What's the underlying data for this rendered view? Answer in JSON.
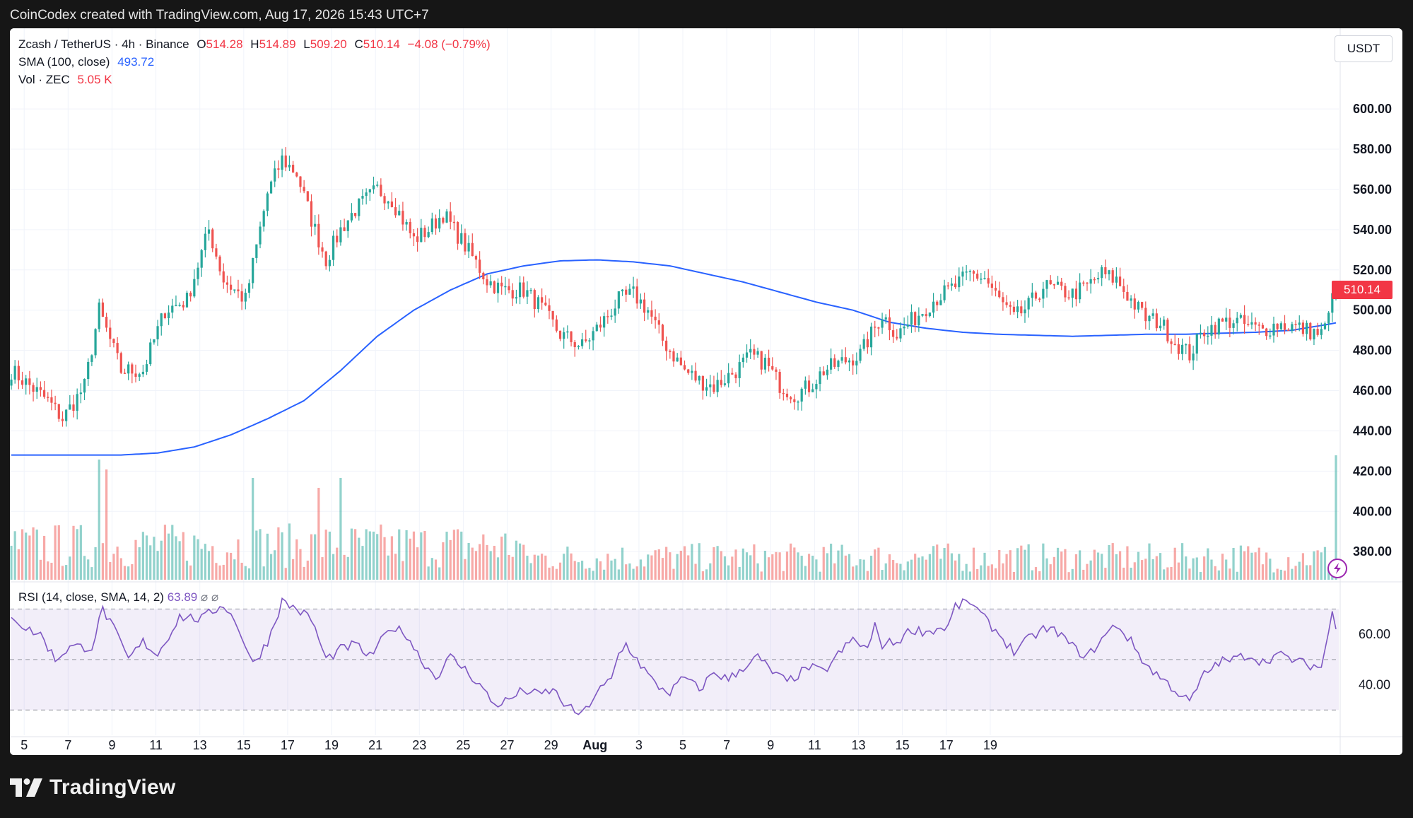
{
  "header": {
    "attribution": "CoinCodex created with TradingView.com, Aug 17, 2026 15:43 UTC+7"
  },
  "footer": {
    "brand": "TradingView",
    "logo_icon": "tradingview-logo-icon"
  },
  "legend": {
    "symbol": "Zcash / TetherUS · 4h · Binance",
    "o_label": "O",
    "o_value": "514.28",
    "h_label": "H",
    "h_value": "514.89",
    "l_label": "L",
    "l_value": "509.20",
    "c_label": "C",
    "c_value": "510.14",
    "change": "−4.08 (−0.79%)",
    "sma_label": "SMA (100, close)",
    "sma_value": "493.72",
    "vol_label": "Vol · ZEC",
    "vol_value": "5.05 K"
  },
  "rsi_legend": {
    "label": "RSI (14, close, SMA, 14, 2)",
    "value": "63.89",
    "eye_icon": "hidden-value-icon"
  },
  "price_axis": {
    "unit": "USDT",
    "last_price": "510.14"
  },
  "colors": {
    "up": "#26a69a",
    "down": "#ef5350",
    "sma": "#2962ff",
    "rsi": "#7e57c2"
  },
  "chart_data": [
    {
      "type": "candlestick",
      "interval": "4h",
      "x_ticks": [
        "5",
        "7",
        "9",
        "11",
        "13",
        "15",
        "17",
        "19",
        "21",
        "23",
        "25",
        "27",
        "29",
        "Aug",
        "3",
        "5",
        "7",
        "9",
        "11",
        "13",
        "15",
        "17",
        "19"
      ],
      "y_ticks": [
        "380.00",
        "400.00",
        "420.00",
        "440.00",
        "460.00",
        "480.00",
        "500.00",
        "520.00",
        "540.00",
        "560.00",
        "580.00",
        "600.00"
      ],
      "ylim": [
        366,
        612
      ],
      "close_waypoints": [
        [
          0,
          470
        ],
        [
          10,
          455
        ],
        [
          14,
          446
        ],
        [
          20,
          462
        ],
        [
          24,
          500
        ],
        [
          30,
          470
        ],
        [
          36,
          470
        ],
        [
          42,
          500
        ],
        [
          48,
          505
        ],
        [
          54,
          540
        ],
        [
          58,
          515
        ],
        [
          64,
          505
        ],
        [
          70,
          558
        ],
        [
          74,
          575
        ],
        [
          78,
          568
        ],
        [
          82,
          545
        ],
        [
          86,
          525
        ],
        [
          90,
          540
        ],
        [
          94,
          550
        ],
        [
          100,
          560
        ],
        [
          104,
          555
        ],
        [
          110,
          535
        ],
        [
          114,
          540
        ],
        [
          118,
          548
        ],
        [
          124,
          532
        ],
        [
          130,
          515
        ],
        [
          134,
          510
        ],
        [
          140,
          510
        ],
        [
          144,
          503
        ],
        [
          150,
          488
        ],
        [
          156,
          482
        ],
        [
          162,
          495
        ],
        [
          166,
          505
        ],
        [
          170,
          508
        ],
        [
          174,
          500
        ],
        [
          178,
          485
        ],
        [
          184,
          470
        ],
        [
          188,
          465
        ],
        [
          192,
          462
        ],
        [
          198,
          470
        ],
        [
          202,
          477
        ],
        [
          206,
          474
        ],
        [
          210,
          463
        ],
        [
          214,
          458
        ],
        [
          218,
          462
        ],
        [
          222,
          470
        ],
        [
          228,
          475
        ],
        [
          232,
          478
        ],
        [
          238,
          498
        ],
        [
          242,
          488
        ],
        [
          248,
          498
        ],
        [
          252,
          505
        ],
        [
          258,
          512
        ],
        [
          262,
          518
        ],
        [
          266,
          516
        ],
        [
          270,
          505
        ],
        [
          274,
          496
        ],
        [
          278,
          502
        ],
        [
          282,
          512
        ],
        [
          286,
          510
        ],
        [
          290,
          508
        ],
        [
          294,
          512
        ],
        [
          298,
          518
        ],
        [
          302,
          515
        ],
        [
          306,
          505
        ],
        [
          310,
          496
        ],
        [
          314,
          494
        ],
        [
          318,
          484
        ],
        [
          322,
          478
        ],
        [
          326,
          490
        ],
        [
          330,
          493
        ],
        [
          334,
          495
        ],
        [
          338,
          492
        ],
        [
          342,
          490
        ],
        [
          346,
          493
        ],
        [
          350,
          492
        ],
        [
          354,
          490
        ],
        [
          358,
          488
        ],
        [
          360,
          496
        ],
        [
          361,
          512
        ],
        [
          362,
          510
        ]
      ],
      "sma_100_waypoints": [
        [
          0,
          428
        ],
        [
          30,
          428
        ],
        [
          40,
          429
        ],
        [
          50,
          432
        ],
        [
          60,
          438
        ],
        [
          70,
          446
        ],
        [
          80,
          455
        ],
        [
          90,
          470
        ],
        [
          100,
          487
        ],
        [
          110,
          500
        ],
        [
          120,
          510
        ],
        [
          130,
          518
        ],
        [
          140,
          522
        ],
        [
          150,
          524.5
        ],
        [
          160,
          525
        ],
        [
          170,
          524
        ],
        [
          180,
          522
        ],
        [
          190,
          518
        ],
        [
          200,
          514
        ],
        [
          210,
          509
        ],
        [
          220,
          504
        ],
        [
          230,
          500
        ],
        [
          240,
          494
        ],
        [
          250,
          491
        ],
        [
          260,
          489
        ],
        [
          270,
          488
        ],
        [
          280,
          487.5
        ],
        [
          290,
          487
        ],
        [
          300,
          487.5
        ],
        [
          310,
          488
        ],
        [
          320,
          488
        ],
        [
          330,
          488.5
        ],
        [
          340,
          489
        ],
        [
          350,
          490
        ],
        [
          360,
          493
        ],
        [
          362,
          493.7
        ]
      ],
      "volume_spikes": [
        [
          24,
          0.85
        ],
        [
          26,
          0.78
        ],
        [
          66,
          0.72
        ],
        [
          84,
          0.65
        ],
        [
          90,
          0.72
        ],
        [
          362,
          0.88
        ]
      ],
      "rsi_waypoints": [
        [
          0,
          68
        ],
        [
          4,
          62
        ],
        [
          8,
          60
        ],
        [
          12,
          50
        ],
        [
          16,
          55
        ],
        [
          22,
          55
        ],
        [
          25,
          70
        ],
        [
          28,
          62
        ],
        [
          32,
          50
        ],
        [
          36,
          57
        ],
        [
          40,
          52
        ],
        [
          46,
          67
        ],
        [
          52,
          66
        ],
        [
          58,
          72
        ],
        [
          62,
          63
        ],
        [
          66,
          48
        ],
        [
          70,
          57
        ],
        [
          74,
          73
        ],
        [
          78,
          70
        ],
        [
          82,
          66
        ],
        [
          86,
          50
        ],
        [
          90,
          54
        ],
        [
          94,
          56
        ],
        [
          98,
          51
        ],
        [
          104,
          63
        ],
        [
          108,
          60
        ],
        [
          112,
          50
        ],
        [
          116,
          43
        ],
        [
          120,
          51
        ],
        [
          124,
          46
        ],
        [
          128,
          40
        ],
        [
          132,
          32
        ],
        [
          136,
          34
        ],
        [
          140,
          38
        ],
        [
          144,
          36
        ],
        [
          148,
          38
        ],
        [
          152,
          31
        ],
        [
          156,
          28
        ],
        [
          160,
          37
        ],
        [
          164,
          42
        ],
        [
          166,
          52
        ],
        [
          168,
          56
        ],
        [
          172,
          48
        ],
        [
          176,
          40
        ],
        [
          180,
          37
        ],
        [
          184,
          43
        ],
        [
          188,
          38
        ],
        [
          192,
          45
        ],
        [
          196,
          42
        ],
        [
          200,
          47
        ],
        [
          204,
          51
        ],
        [
          208,
          45
        ],
        [
          212,
          41
        ],
        [
          218,
          47
        ],
        [
          222,
          45
        ],
        [
          226,
          52
        ],
        [
          230,
          58
        ],
        [
          234,
          54
        ],
        [
          236,
          63
        ],
        [
          238,
          56
        ],
        [
          242,
          57
        ],
        [
          246,
          62
        ],
        [
          250,
          61
        ],
        [
          256,
          63
        ],
        [
          258,
          71
        ],
        [
          262,
          73
        ],
        [
          266,
          66
        ],
        [
          270,
          60
        ],
        [
          274,
          53
        ],
        [
          278,
          58
        ],
        [
          282,
          62
        ],
        [
          286,
          61
        ],
        [
          290,
          55
        ],
        [
          294,
          51
        ],
        [
          298,
          58
        ],
        [
          302,
          64
        ],
        [
          306,
          57
        ],
        [
          310,
          48
        ],
        [
          314,
          43
        ],
        [
          318,
          38
        ],
        [
          322,
          33
        ],
        [
          326,
          44
        ],
        [
          330,
          49
        ],
        [
          334,
          50
        ],
        [
          338,
          52
        ],
        [
          342,
          49
        ],
        [
          346,
          52
        ],
        [
          350,
          50
        ],
        [
          354,
          48
        ],
        [
          358,
          47
        ],
        [
          361,
          68
        ],
        [
          362,
          64
        ]
      ],
      "rsi_ticks": [
        "60.00",
        "40.00"
      ],
      "rsi_levels": [
        70,
        50,
        30
      ]
    }
  ]
}
